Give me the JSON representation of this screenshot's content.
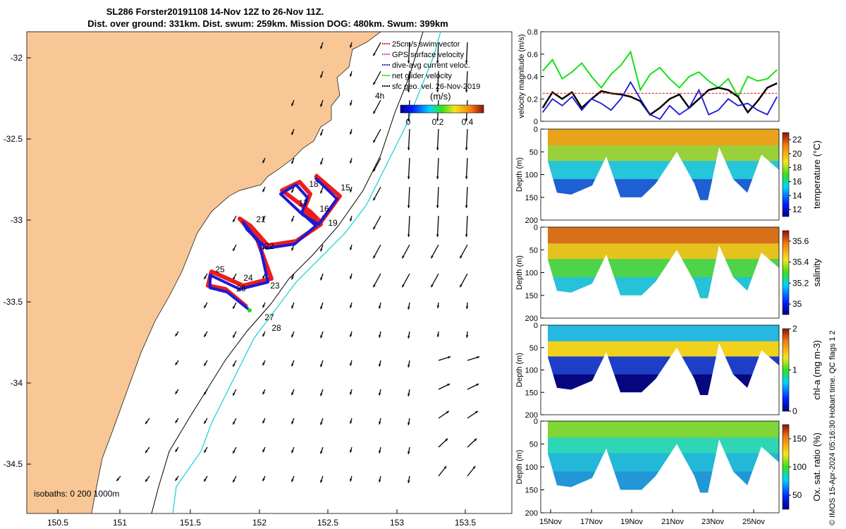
{
  "title_line1": "SL286 Forster20191108 14-Nov 12Z to 26-Nov 11Z.",
  "title_line2": "Dist. over ground: 331km. Dist. swum: 259km. Mission DOG: 480km. Swum: 399km",
  "credit": "© IMOS 15-Apr-2024 05:16:30 Hobart time. QC flags 1  2",
  "colors": {
    "land": "#f9c796",
    "track": "#ee1c1c",
    "dive_avg": "#1a1ad6",
    "net_velocity": "#15e115",
    "sfc_geo": "#000000",
    "isobath_200": "#22d3d6"
  },
  "map": {
    "x_ticks": [
      "150.5",
      "151",
      "151.5",
      "152",
      "152.5",
      "153",
      "153.5"
    ],
    "y_ticks": [
      "-32",
      "-32.5",
      "-33",
      "-33.5",
      "-34",
      "-34.5"
    ],
    "isobaths_label": "isobaths: 0   200  1000m",
    "time_step_label": "4h",
    "colorbar_title": "(m/s)",
    "colorbar_ticks": [
      "0",
      "0.2",
      "0.4"
    ],
    "legend": [
      {
        "label": "25cm/s swim vector"
      },
      {
        "label": "GPS surface velocity"
      },
      {
        "label": "dive-avg current veloc."
      },
      {
        "label": "net glider velocity"
      },
      {
        "label": "sfc geo. vel. 26-Nov-2019"
      }
    ],
    "day_labels": [
      "15",
      "16",
      "17",
      "18",
      "19",
      "21",
      "22",
      "23",
      "24",
      "25",
      "26",
      "27",
      "28"
    ]
  },
  "chart_data": [
    {
      "type": "line",
      "title": "",
      "ylabel": "velocity magnitude (m/s)",
      "ylim": [
        0,
        0.8
      ],
      "y_ticks": [
        "0",
        "0.2",
        "0.4",
        "0.6",
        "0.8"
      ],
      "x_days": [
        14.5,
        15,
        15.5,
        16,
        16.5,
        17,
        17.5,
        18,
        18.5,
        19,
        19.5,
        20,
        20.5,
        21,
        21.5,
        22,
        22.5,
        23,
        23.5,
        24,
        24.5,
        25,
        25.5,
        26,
        26.5
      ],
      "series": [
        {
          "name": "net glider velocity",
          "values": [
            0.45,
            0.55,
            0.38,
            0.44,
            0.52,
            0.4,
            0.3,
            0.42,
            0.5,
            0.62,
            0.28,
            0.42,
            0.48,
            0.38,
            0.3,
            0.4,
            0.44,
            0.36,
            0.3,
            0.38,
            0.22,
            0.4,
            0.36,
            0.38,
            0.46
          ]
        },
        {
          "name": "sfc geo. vel.",
          "values": [
            0.12,
            0.26,
            0.2,
            0.26,
            0.12,
            0.2,
            0.27,
            0.25,
            0.24,
            0.22,
            0.18,
            0.06,
            0.12,
            0.2,
            0.24,
            0.12,
            0.2,
            0.28,
            0.3,
            0.28,
            0.22,
            0.08,
            0.18,
            0.3,
            0.34
          ]
        },
        {
          "name": "dive-avg current veloc.",
          "values": [
            0.08,
            0.2,
            0.14,
            0.22,
            0.1,
            0.2,
            0.16,
            0.1,
            0.2,
            0.35,
            0.2,
            0.06,
            0.02,
            0.14,
            0.06,
            0.12,
            0.28,
            0.06,
            0.1,
            0.2,
            0.14,
            0.16,
            0.1,
            0.06,
            0.22
          ]
        },
        {
          "name": "25cm/s swim",
          "values": [
            0.25,
            0.25,
            0.25,
            0.25,
            0.25,
            0.25,
            0.25,
            0.25,
            0.25,
            0.25,
            0.25,
            0.25,
            0.25,
            0.25,
            0.25,
            0.25,
            0.25,
            0.25,
            0.25,
            0.25,
            0.25,
            0.25,
            0.25,
            0.25,
            0.25
          ]
        }
      ]
    },
    {
      "type": "heatmap",
      "ylabel": "Depth (m)",
      "y_ticks": [
        "0",
        "50",
        "100",
        "150",
        "200"
      ],
      "colorbar_label": "temperature (°C)",
      "colorbar_ticks": [
        "12",
        "14",
        "16",
        "18",
        "20",
        "22"
      ],
      "range": [
        11,
        23
      ]
    },
    {
      "type": "heatmap",
      "ylabel": "Depth (m)",
      "y_ticks": [
        "0",
        "50",
        "100",
        "150",
        "200"
      ],
      "colorbar_label": "salinity",
      "colorbar_ticks": [
        "35",
        "35.2",
        "35.4",
        "35.6"
      ],
      "range": [
        34.9,
        35.7
      ]
    },
    {
      "type": "heatmap",
      "ylabel": "Depth (m)",
      "y_ticks": [
        "0",
        "50",
        "100",
        "150",
        "200"
      ],
      "colorbar_label": "chl-a (mg m-3)",
      "colorbar_ticks": [
        "0",
        "1",
        "2"
      ],
      "range": [
        0,
        2
      ]
    },
    {
      "type": "heatmap",
      "ylabel": "Depth (m)",
      "y_ticks": [
        "0",
        "50",
        "100",
        "150",
        "200"
      ],
      "colorbar_label": "Ox. sat. ratio (%)",
      "colorbar_ticks": [
        "50",
        "100",
        "150"
      ],
      "range": [
        25,
        175
      ]
    }
  ],
  "time_axis": [
    "15Nov",
    "17Nov",
    "19Nov",
    "21Nov",
    "23Nov",
    "25Nov"
  ]
}
